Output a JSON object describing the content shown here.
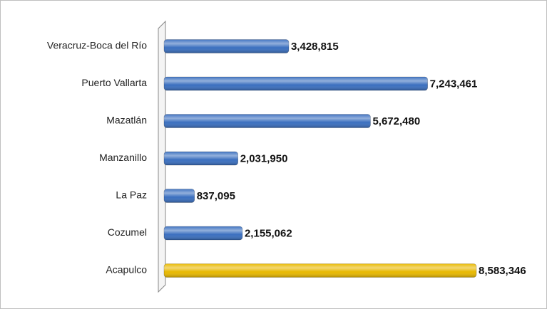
{
  "chart_data": {
    "type": "bar",
    "orientation": "horizontal",
    "categories": [
      "Veracruz-Boca del Río",
      "Puerto Vallarta",
      "Mazatlán",
      "Manzanillo",
      "La Paz",
      "Cozumel",
      "Acapulco"
    ],
    "values": [
      3428815,
      7243461,
      5672480,
      2031950,
      837095,
      2155062,
      8583346
    ],
    "value_labels": [
      "3,428,815",
      "7,243,461",
      "5,672,480",
      "2,031,950",
      "837,095",
      "2,155,062",
      "8,583,346"
    ],
    "colors": [
      "#3a6fbf",
      "#3a6fbf",
      "#3a6fbf",
      "#3a6fbf",
      "#3a6fbf",
      "#3a6fbf",
      "#e8b800"
    ]
  }
}
